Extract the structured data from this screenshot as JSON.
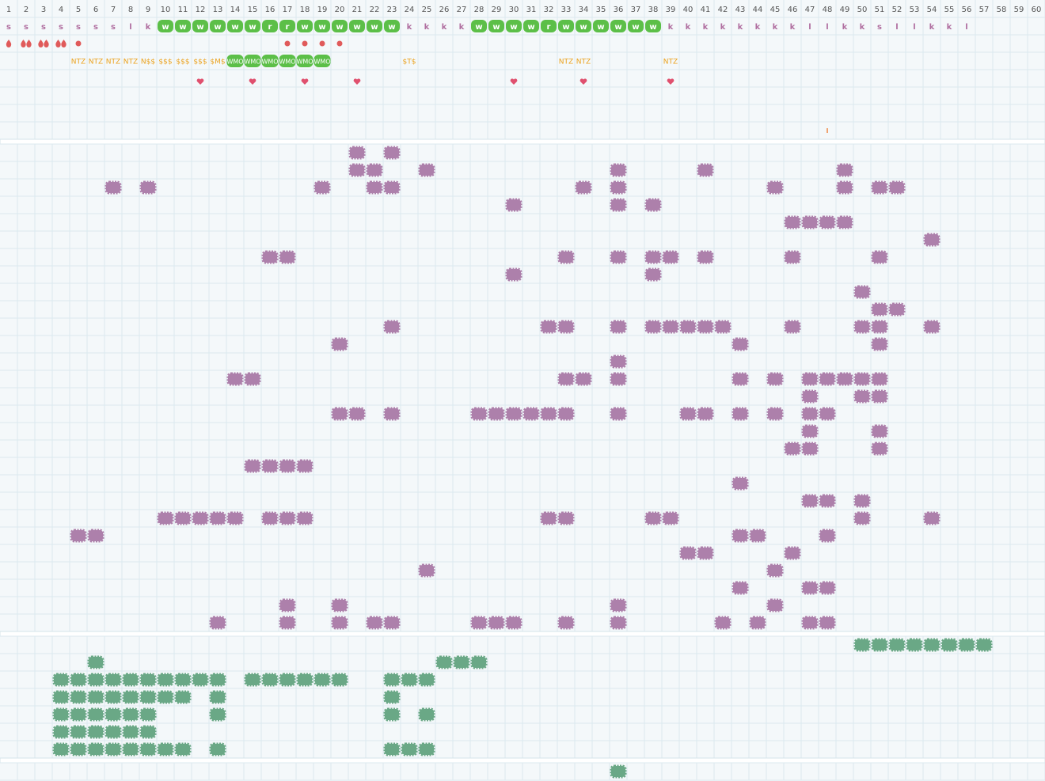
{
  "columns": [
    1,
    2,
    3,
    4,
    5,
    6,
    7,
    8,
    9,
    10,
    11,
    12,
    13,
    14,
    15,
    16,
    17,
    18,
    19,
    20,
    21,
    22,
    23,
    24,
    25,
    26,
    27,
    28,
    29,
    30,
    31,
    32,
    33,
    34,
    35,
    36,
    37,
    38,
    39,
    40,
    41,
    42,
    43,
    44,
    45,
    46,
    47,
    48,
    49,
    50,
    51,
    52,
    53,
    54,
    55,
    56,
    57,
    58,
    59,
    60
  ],
  "badge_color": "#5cbf48",
  "top": {
    "letters": [
      "s",
      "s",
      "s",
      "s",
      "s",
      "s",
      "s",
      "l",
      "k",
      {
        "text": "w",
        "badge": true
      },
      {
        "text": "w",
        "badge": true
      },
      {
        "text": "w",
        "badge": true
      },
      {
        "text": "w",
        "badge": true
      },
      {
        "text": "w",
        "badge": true
      },
      {
        "text": "w",
        "badge": true
      },
      {
        "text": "r",
        "badge": true
      },
      {
        "text": "r",
        "badge": true
      },
      {
        "text": "w",
        "badge": true
      },
      {
        "text": "w",
        "badge": true
      },
      {
        "text": "w",
        "badge": true
      },
      {
        "text": "w",
        "badge": true
      },
      {
        "text": "w",
        "badge": true
      },
      {
        "text": "w",
        "badge": true
      },
      "k",
      "k",
      "k",
      "k",
      {
        "text": "w",
        "badge": true
      },
      {
        "text": "w",
        "badge": true
      },
      {
        "text": "w",
        "badge": true
      },
      {
        "text": "w",
        "badge": true
      },
      {
        "text": "r",
        "badge": true
      },
      {
        "text": "w",
        "badge": true
      },
      {
        "text": "w",
        "badge": true
      },
      {
        "text": "w",
        "badge": true
      },
      {
        "text": "w",
        "badge": true
      },
      {
        "text": "w",
        "badge": true
      },
      {
        "text": "w",
        "badge": true
      },
      "k",
      "k",
      "k",
      "k",
      "k",
      "k",
      "k",
      "k",
      "l",
      "l",
      "k",
      "k",
      "s",
      "l",
      "l",
      "k",
      "k",
      "l",
      null,
      null,
      null,
      null
    ],
    "markers": [
      {
        "column": 1,
        "icon": "drop",
        "count": 1
      },
      {
        "column": 2,
        "icon": "drop",
        "count": 2
      },
      {
        "column": 3,
        "icon": "drop",
        "count": 2
      },
      {
        "column": 4,
        "icon": "drop",
        "count": 2
      },
      {
        "column": 5,
        "icon": "dot"
      },
      {
        "column": 17,
        "icon": "dot"
      },
      {
        "column": 18,
        "icon": "dot"
      },
      {
        "column": 19,
        "icon": "dot"
      },
      {
        "column": 20,
        "icon": "dot"
      }
    ],
    "codes": [
      null,
      null,
      null,
      null,
      "NTZ",
      "NTZ",
      "NTZ",
      "NTZ",
      "N$$",
      "$$$",
      "$$$",
      "$$$",
      "$M$",
      {
        "text": "WMO",
        "badge": true
      },
      {
        "text": "WMO",
        "badge": true
      },
      {
        "text": "WMO",
        "badge": true
      },
      {
        "text": "WMO",
        "badge": true
      },
      {
        "text": "WMO",
        "badge": true
      },
      {
        "text": "WMO",
        "badge": true
      },
      null,
      null,
      null,
      null,
      "$T$",
      null,
      null,
      null,
      null,
      null,
      null,
      null,
      null,
      "NTZ",
      "NTZ",
      null,
      null,
      null,
      null,
      "NTZ",
      null,
      null,
      null,
      null,
      null,
      null,
      null,
      null,
      null,
      null,
      null,
      null,
      null,
      null,
      null,
      null,
      null,
      null,
      null,
      null,
      null
    ],
    "hearts": [
      12,
      15,
      18,
      21,
      30,
      34,
      39
    ],
    "ticks": [
      48
    ]
  },
  "grids": [
    {
      "color": "#ad80ab",
      "rows": [
        [
          21,
          23
        ],
        [
          21,
          22,
          25,
          36,
          41,
          49
        ],
        [
          7,
          9,
          19,
          22,
          23,
          34,
          36,
          45,
          49,
          51,
          52
        ],
        [
          30,
          36,
          38
        ],
        [
          46,
          47,
          48,
          49
        ],
        [
          54
        ],
        [
          16,
          17,
          33,
          36,
          38,
          39,
          41,
          46,
          51
        ],
        [
          30,
          38
        ],
        [
          50
        ],
        [
          51,
          52
        ],
        [
          23,
          32,
          33,
          36,
          38,
          39,
          40,
          41,
          42,
          46,
          50,
          51,
          54
        ],
        [
          20,
          43,
          51
        ],
        [
          36
        ],
        [
          14,
          15,
          33,
          34,
          36,
          43,
          45,
          47,
          48,
          49,
          50,
          51
        ],
        [
          47,
          50,
          51
        ],
        [
          20,
          21,
          23,
          28,
          29,
          30,
          31,
          32,
          33,
          36,
          40,
          41,
          43,
          45,
          47,
          48
        ],
        [
          47,
          51
        ],
        [
          46,
          47,
          51
        ],
        [
          15,
          16,
          17,
          18
        ],
        [
          43
        ],
        [
          47,
          48,
          50
        ],
        [
          10,
          11,
          12,
          13,
          14,
          16,
          17,
          18,
          32,
          33,
          38,
          39,
          50,
          54
        ],
        [
          5,
          6,
          43,
          44,
          48
        ],
        [
          40,
          41,
          46
        ],
        [
          25,
          45
        ],
        [
          43,
          47,
          48
        ],
        [
          17,
          20,
          36,
          45
        ],
        [
          13,
          17,
          20,
          22,
          23,
          28,
          29,
          30,
          33,
          36,
          42,
          44,
          47,
          48
        ]
      ]
    },
    {
      "color": "#6aa886",
      "rows": [
        [
          50,
          51,
          52,
          53,
          54,
          55,
          56,
          57
        ],
        [
          6,
          26,
          27,
          28
        ],
        [
          4,
          5,
          6,
          7,
          8,
          9,
          10,
          11,
          12,
          13,
          15,
          16,
          17,
          18,
          19,
          20,
          23,
          24,
          25
        ],
        [
          4,
          5,
          6,
          7,
          8,
          9,
          10,
          11,
          13,
          23
        ],
        [
          4,
          5,
          6,
          7,
          8,
          9,
          13,
          23,
          25
        ],
        [
          4,
          5,
          6,
          7,
          8,
          9
        ],
        [
          4,
          5,
          6,
          7,
          8,
          9,
          10,
          11,
          13,
          23,
          24,
          25
        ]
      ]
    },
    {
      "color": "#6aa886",
      "rows": [
        [
          36
        ]
      ]
    }
  ]
}
